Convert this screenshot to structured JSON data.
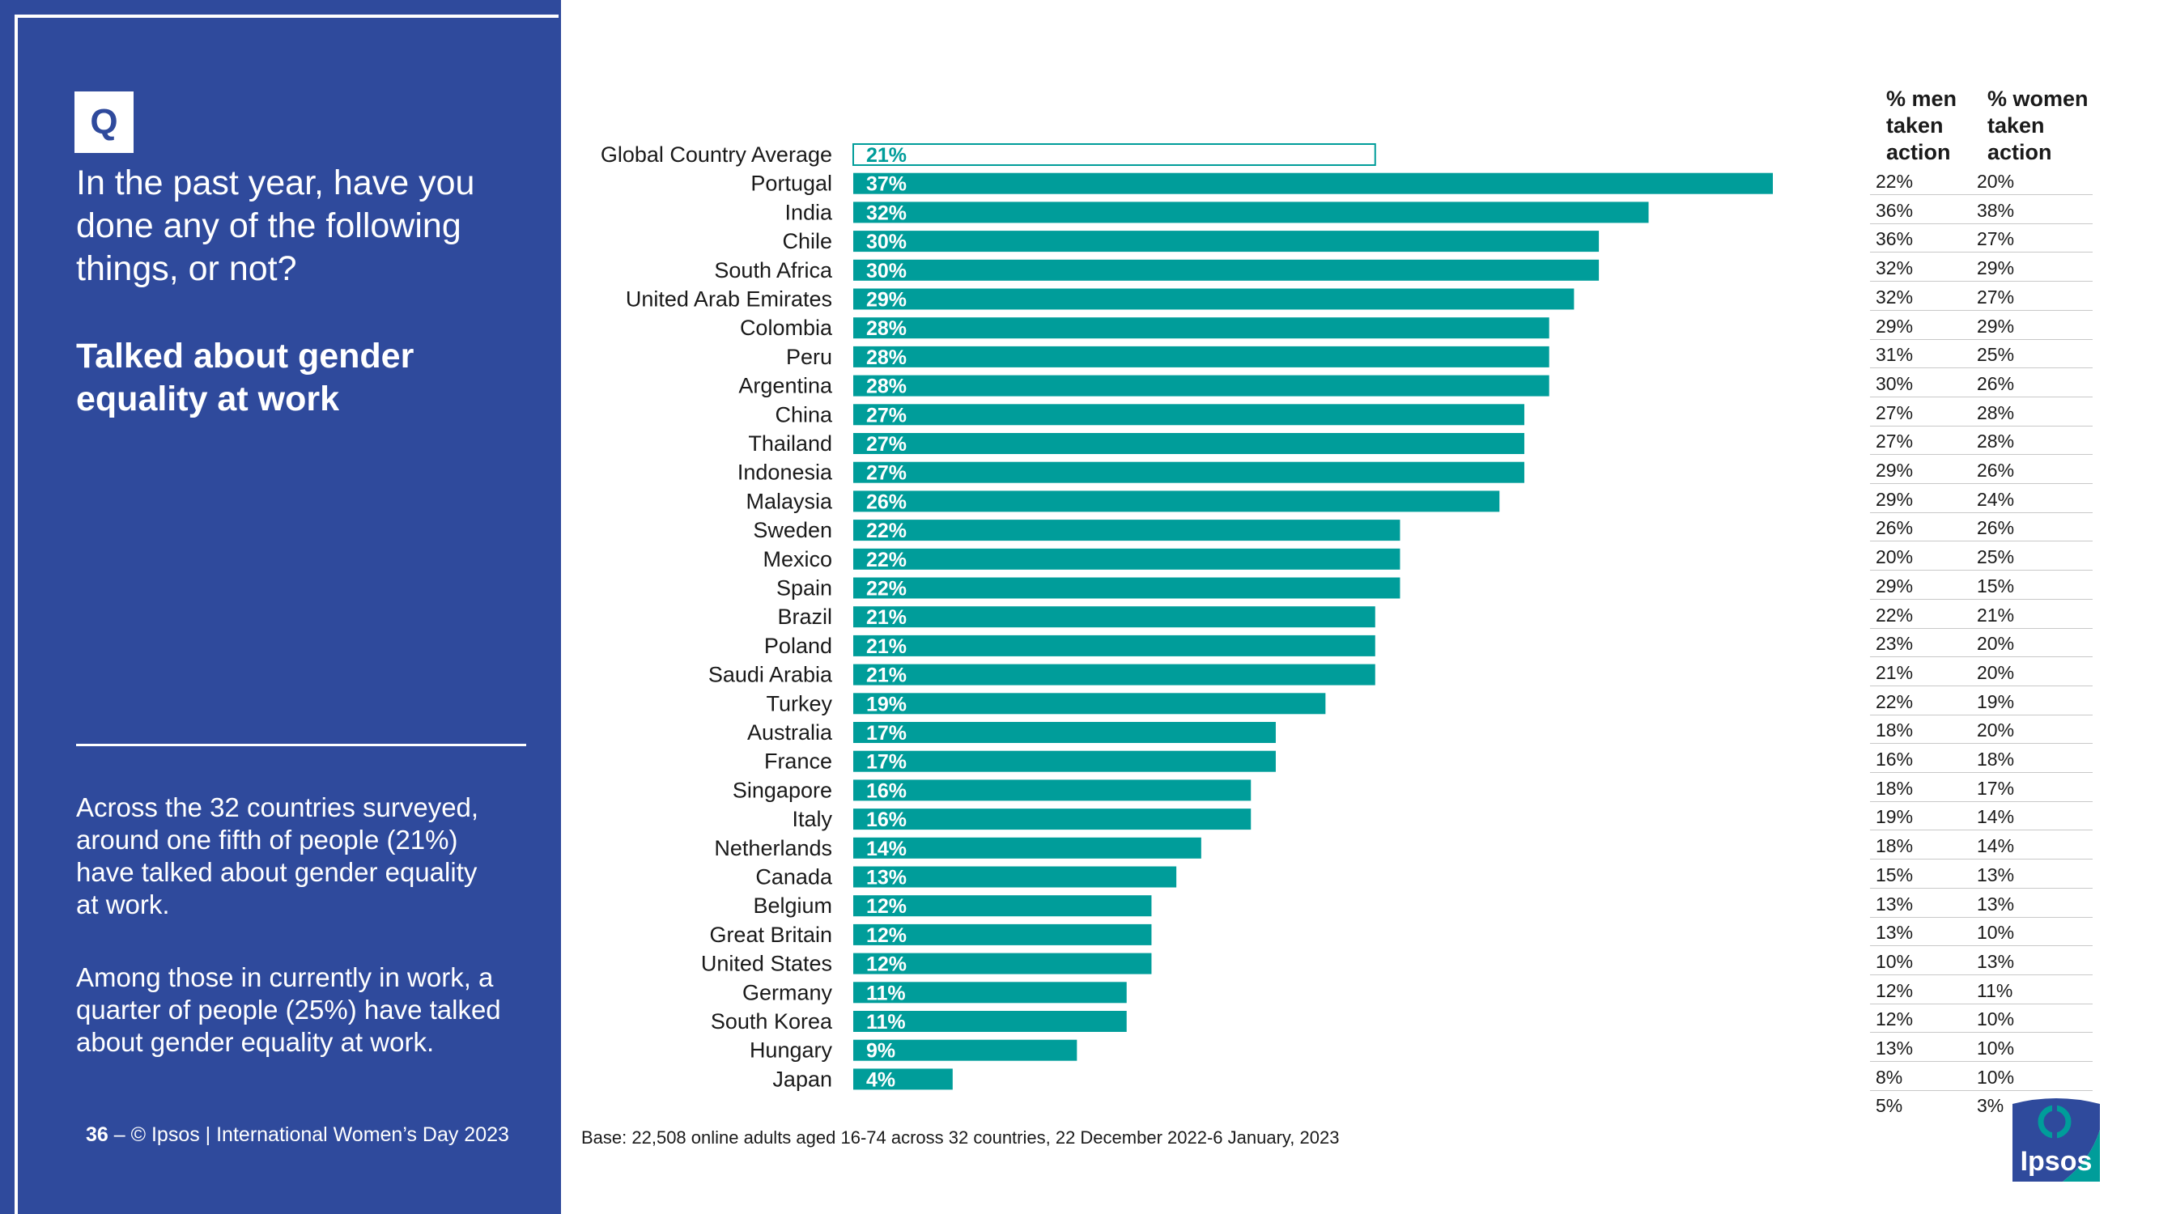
{
  "left_panel": {
    "badge": "Q",
    "question_lines": [
      "In the past year, have you",
      "done any of the following",
      "things, or not?"
    ],
    "subtitle_lines": [
      "Talked about gender",
      "equality at work"
    ],
    "para1_lines": [
      "Across the 32 countries surveyed,",
      "around one fifth of people (21%)",
      "have talked about gender equality",
      "at work."
    ],
    "para2_lines": [
      "Among those in currently in work, a",
      "quarter of people (25%) have talked",
      "about gender equality at work."
    ],
    "footer_page": "36",
    "footer_sep": " – ",
    "footer_text": "© Ipsos | International Women’s Day 2023"
  },
  "base_note": "Base: 22,508 online adults aged 16-74 across 32 countries, 22 December 2022-6 January, 2023",
  "table": {
    "header_men_lines": [
      "% men",
      "taken",
      "action"
    ],
    "header_women_lines": [
      "% women",
      "taken",
      "action"
    ],
    "rows": [
      {
        "men": "22%",
        "women": "20%"
      },
      {
        "men": "36%",
        "women": "38%"
      },
      {
        "men": "36%",
        "women": "27%"
      },
      {
        "men": "32%",
        "women": "29%"
      },
      {
        "men": "32%",
        "women": "27%"
      },
      {
        "men": "29%",
        "women": "29%"
      },
      {
        "men": "31%",
        "women": "25%"
      },
      {
        "men": "30%",
        "women": "26%"
      },
      {
        "men": "27%",
        "women": "28%"
      },
      {
        "men": "27%",
        "women": "28%"
      },
      {
        "men": "29%",
        "women": "26%"
      },
      {
        "men": "29%",
        "women": "24%"
      },
      {
        "men": "26%",
        "women": "26%"
      },
      {
        "men": "20%",
        "women": "25%"
      },
      {
        "men": "29%",
        "women": "15%"
      },
      {
        "men": "22%",
        "women": "21%"
      },
      {
        "men": "23%",
        "women": "20%"
      },
      {
        "men": "21%",
        "women": "20%"
      },
      {
        "men": "22%",
        "women": "19%"
      },
      {
        "men": "18%",
        "women": "20%"
      },
      {
        "men": "16%",
        "women": "18%"
      },
      {
        "men": "18%",
        "women": "17%"
      },
      {
        "men": "19%",
        "women": "14%"
      },
      {
        "men": "18%",
        "women": "14%"
      },
      {
        "men": "15%",
        "women": "13%"
      },
      {
        "men": "13%",
        "women": "13%"
      },
      {
        "men": "13%",
        "women": "10%"
      },
      {
        "men": "10%",
        "women": "13%"
      },
      {
        "men": "12%",
        "women": "11%"
      },
      {
        "men": "12%",
        "women": "10%"
      },
      {
        "men": "13%",
        "women": "10%"
      },
      {
        "men": "8%",
        "women": "10%"
      },
      {
        "men": "5%",
        "women": "3%"
      }
    ]
  },
  "logo": {
    "text": "Ipsos"
  },
  "colors": {
    "panel": "#2f4a9c",
    "bar": "#009d9a",
    "bar_label": "#ffffff",
    "avg_text": "#009d9a"
  },
  "chart_data": {
    "type": "bar",
    "orientation": "horizontal",
    "categories": [
      "Global Country Average",
      "Portugal",
      "India",
      "Chile",
      "South Africa",
      "United Arab Emirates",
      "Colombia",
      "Peru",
      "Argentina",
      "China",
      "Thailand",
      "Indonesia",
      "Malaysia",
      "Sweden",
      "Mexico",
      "Spain",
      "Brazil",
      "Poland",
      "Saudi Arabia",
      "Turkey",
      "Australia",
      "France",
      "Singapore",
      "Italy",
      "Netherlands",
      "Canada",
      "Belgium",
      "Great Britain",
      "United States",
      "Germany",
      "South Korea",
      "Hungary",
      "Japan"
    ],
    "values": [
      21,
      37,
      32,
      30,
      30,
      29,
      28,
      28,
      28,
      27,
      27,
      27,
      26,
      22,
      22,
      22,
      21,
      21,
      21,
      19,
      17,
      17,
      16,
      16,
      14,
      13,
      12,
      12,
      12,
      11,
      11,
      9,
      4
    ],
    "value_labels": [
      "21%",
      "37%",
      "32%",
      "30%",
      "30%",
      "29%",
      "28%",
      "28%",
      "28%",
      "27%",
      "27%",
      "27%",
      "26%",
      "22%",
      "22%",
      "22%",
      "21%",
      "21%",
      "21%",
      "19%",
      "17%",
      "17%",
      "16%",
      "16%",
      "14%",
      "13%",
      "12%",
      "12%",
      "12%",
      "11%",
      "11%",
      "9%",
      "4%"
    ],
    "highlight_first": true,
    "xlim": [
      0,
      37
    ],
    "title": "",
    "xlabel": "",
    "ylabel": ""
  }
}
